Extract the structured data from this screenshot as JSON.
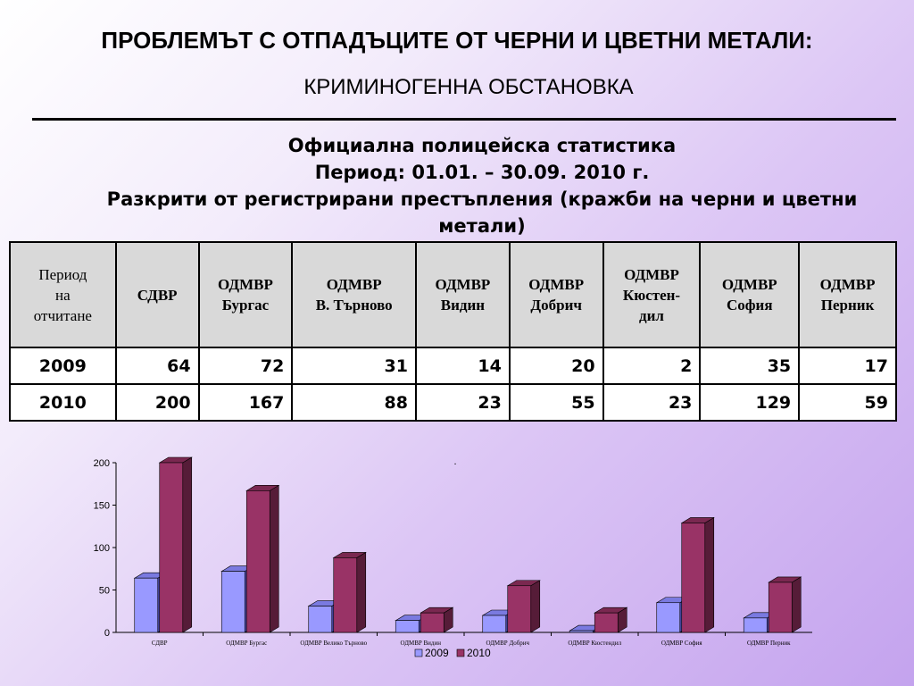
{
  "header": {
    "title": "ПРОБЛЕМЪТ С ОТПАДЪЦИТЕ ОТ ЧЕРНИ И ЦВЕТНИ МЕТАЛИ:",
    "subtitle": "КРИМИНОГЕННА ОБСТАНОВКА"
  },
  "stats": {
    "line1": "Официална полицейска статистика",
    "line2": "Период: 01.01. – 30.09. 2010 г.",
    "line3": "Разкрити от регистрирани престъпления (кражби на черни и цветни метали)"
  },
  "table": {
    "headers": [
      [
        "Период",
        "на",
        "отчитане"
      ],
      [
        "СДВР"
      ],
      [
        "ОДМВР",
        "Бургас"
      ],
      [
        "ОДМВР",
        "В. Търново"
      ],
      [
        "ОДМВР",
        "Видин"
      ],
      [
        "ОДМВР",
        "Добрич"
      ],
      [
        "ОДМВР",
        "Кюстен-",
        "дил"
      ],
      [
        "ОДМВР",
        "София"
      ],
      [
        "ОДМВР",
        "Перник"
      ]
    ],
    "rows": [
      [
        "2009",
        "64",
        "72",
        "31",
        "14",
        "20",
        "2",
        "35",
        "17"
      ],
      [
        "2010",
        "200",
        "167",
        "88",
        "23",
        "55",
        "23",
        "129",
        "59"
      ]
    ]
  },
  "chart_data": {
    "type": "bar",
    "categories": [
      "СДВР",
      "ОДМВР Бургас",
      "ОДМВР Велико Търново",
      "ОДМВР Видин",
      "ОДМВР Добрич",
      "ОДМВР Кюстендил",
      "ОДМВР София",
      "ОДМВР Перник"
    ],
    "series": [
      {
        "name": "2009",
        "values": [
          64,
          72,
          31,
          14,
          20,
          2,
          35,
          17
        ],
        "color": "#9999ff",
        "top": "#7a7ae0",
        "side": "#4a4aa8"
      },
      {
        "name": "2010",
        "values": [
          200,
          167,
          88,
          23,
          55,
          23,
          129,
          59
        ],
        "color": "#993366",
        "top": "#7a2850",
        "side": "#561c38"
      }
    ],
    "y_ticks": [
      "0",
      "50",
      "100",
      "150",
      "200"
    ],
    "ylim": [
      0,
      200
    ],
    "legend_position": "bottom",
    "grid": false,
    "annotation": "."
  }
}
